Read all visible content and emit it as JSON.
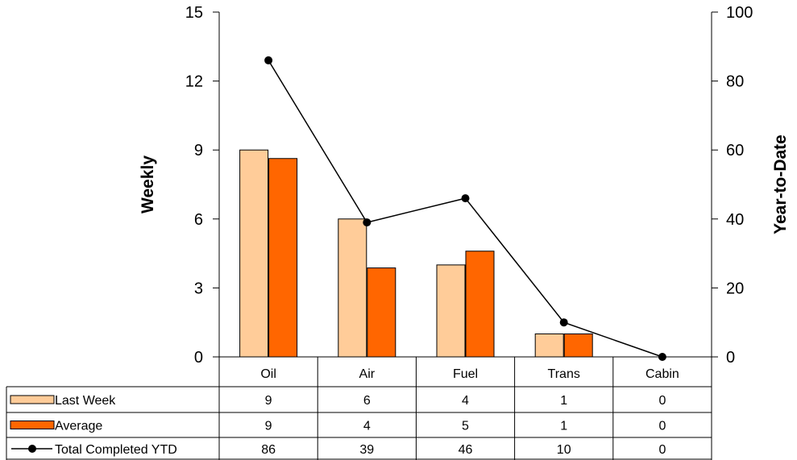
{
  "chart_data": {
    "type": "bar",
    "categories": [
      "Oil",
      "Air",
      "Fuel",
      "Trans",
      "Cabin"
    ],
    "series": [
      {
        "name": "Last Week",
        "type": "bar",
        "axis": "left",
        "color": "#FFCC99",
        "values": [
          9,
          6,
          4,
          1,
          0
        ]
      },
      {
        "name": "Average",
        "type": "bar",
        "axis": "left",
        "color": "#FF6600",
        "values": [
          8.63,
          3.87,
          4.6,
          1,
          0
        ]
      },
      {
        "name": "Total Completed YTD",
        "type": "line",
        "axis": "right",
        "color": "#000000",
        "values": [
          86,
          39,
          46,
          10,
          0
        ]
      }
    ],
    "table_values": [
      [
        "9",
        "6",
        "4",
        "1",
        "0"
      ],
      [
        "9",
        "4",
        "5",
        "1",
        "0"
      ],
      [
        "86",
        "39",
        "46",
        "10",
        "0"
      ]
    ],
    "ylabel": "Weekly",
    "y2label": "Year-to-Date",
    "ylim": [
      0,
      15
    ],
    "y2lim": [
      0,
      100
    ],
    "yticks": [
      "0",
      "3",
      "6",
      "9",
      "12",
      "15"
    ],
    "y2ticks": [
      "0",
      "20",
      "40",
      "60",
      "80",
      "100"
    ],
    "grid": false,
    "legend": "data table"
  }
}
